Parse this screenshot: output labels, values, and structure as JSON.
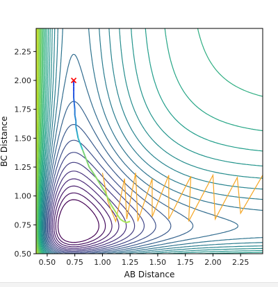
{
  "chart_data": {
    "type": "contour",
    "title": "",
    "xlabel": "AB Distance",
    "ylabel": "BC Distance",
    "xlim": [
      0.4,
      2.45
    ],
    "ylim": [
      0.5,
      2.45
    ],
    "xticks": [
      "0.50",
      "0.75",
      "1.00",
      "1.25",
      "1.50",
      "1.75",
      "2.00",
      "2.25"
    ],
    "xtick_values": [
      0.5,
      0.75,
      1.0,
      1.25,
      1.5,
      1.75,
      2.0,
      2.25
    ],
    "yticks": [
      "0.50",
      "0.75",
      "1.00",
      "1.25",
      "1.50",
      "1.75",
      "2.00",
      "2.25"
    ],
    "ytick_values": [
      0.5,
      0.75,
      1.0,
      1.25,
      1.5,
      1.75,
      2.0,
      2.25
    ],
    "colormap": "viridis",
    "grid": false,
    "legend": "none",
    "contour_levels": 30,
    "start_point": {
      "x": 0.74,
      "y": 2.0,
      "marker": "x",
      "color": "#ff0000"
    },
    "trajectory_description": "Path descends from start point along BC axis then oscillates inside reactant valley toward larger AB distance",
    "trajectory": [
      [
        0.74,
        2.0
      ],
      [
        0.74,
        1.95
      ],
      [
        0.74,
        1.9
      ],
      [
        0.74,
        1.85
      ],
      [
        0.745,
        1.8
      ],
      [
        0.75,
        1.75
      ],
      [
        0.75,
        1.7
      ],
      [
        0.76,
        1.65
      ],
      [
        0.76,
        1.6
      ],
      [
        0.77,
        1.55
      ],
      [
        0.78,
        1.5
      ],
      [
        0.8,
        1.45
      ],
      [
        0.82,
        1.4
      ],
      [
        0.84,
        1.35
      ],
      [
        0.86,
        1.3
      ],
      [
        0.88,
        1.25
      ],
      [
        0.93,
        1.18
      ],
      [
        0.98,
        1.1
      ],
      [
        1.02,
        1.04
      ],
      [
        1.05,
        0.98
      ],
      [
        1.08,
        0.92
      ],
      [
        1.12,
        0.86
      ],
      [
        1.16,
        0.8
      ],
      [
        1.19,
        0.78
      ],
      [
        1.22,
        0.77
      ],
      [
        1.25,
        0.78
      ]
    ],
    "oscillation": [
      [
        1.0,
        1.2
      ],
      [
        1.05,
        0.95
      ],
      [
        1.12,
        0.78
      ],
      [
        1.2,
        1.15
      ],
      [
        1.22,
        0.8
      ],
      [
        1.3,
        1.2
      ],
      [
        1.32,
        0.78
      ],
      [
        1.45,
        1.15
      ],
      [
        1.45,
        0.82
      ],
      [
        1.6,
        1.18
      ],
      [
        1.6,
        0.8
      ],
      [
        1.8,
        1.17
      ],
      [
        1.78,
        0.78
      ],
      [
        2.0,
        1.18
      ],
      [
        2.02,
        0.8
      ],
      [
        2.22,
        1.16
      ],
      [
        2.25,
        0.85
      ],
      [
        2.45,
        1.18
      ]
    ]
  }
}
